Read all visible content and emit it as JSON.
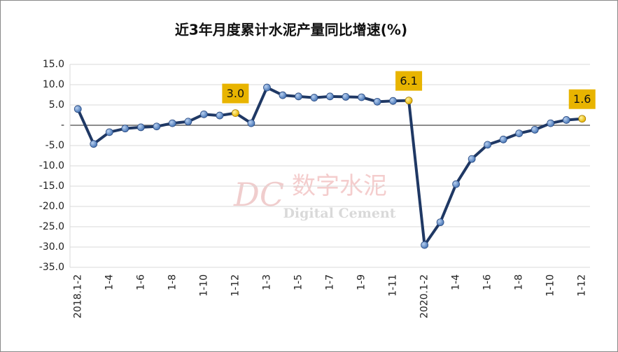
{
  "chart_data": {
    "type": "line",
    "title": "近3年月度累计水泥产量同比增速(%)",
    "watermark": {
      "logo": "DC",
      "name": "数字水泥",
      "english": "Digital Cement"
    },
    "categories": [
      "2018.1-2",
      null,
      "1-4",
      null,
      "1-6",
      null,
      "1-8",
      null,
      "1-10",
      null,
      "1-12",
      null,
      "1-3",
      null,
      "1-5",
      null,
      "1-7",
      null,
      "1-9",
      null,
      "1-11",
      null,
      "2020.1-2",
      null,
      "1-4",
      null,
      "1-6",
      null,
      "1-8",
      null,
      "1-10",
      null,
      "1-12"
    ],
    "series": [
      {
        "color": "#1f3864",
        "marker_color": "#4a78b8",
        "highlight_color": "#e8b400",
        "values": [
          4.0,
          -4.6,
          -1.7,
          -0.8,
          -0.5,
          -0.3,
          0.5,
          0.9,
          2.7,
          2.4,
          3.0,
          0.5,
          9.3,
          7.4,
          7.1,
          6.8,
          7.1,
          7.0,
          6.9,
          5.8,
          6.0,
          6.1,
          -29.5,
          -23.9,
          -14.5,
          -8.3,
          -4.8,
          -3.5,
          -2.0,
          -1.1,
          0.5,
          1.3,
          1.6
        ],
        "value_labels": [
          null,
          null,
          null,
          null,
          null,
          null,
          null,
          null,
          null,
          null,
          "3.0",
          null,
          null,
          null,
          null,
          null,
          null,
          null,
          null,
          null,
          null,
          "6.1",
          null,
          null,
          null,
          null,
          null,
          null,
          null,
          null,
          null,
          null,
          "1.6"
        ]
      }
    ],
    "ylim": [
      -35,
      15
    ],
    "yticks": [
      {
        "value": -35,
        "label": "-35.0"
      },
      {
        "value": -30,
        "label": "-30.0"
      },
      {
        "value": -25,
        "label": "-25.0"
      },
      {
        "value": -20,
        "label": "-20.0"
      },
      {
        "value": -15,
        "label": "-15.0"
      },
      {
        "value": -10,
        "label": "-10.0"
      },
      {
        "value": -5,
        "label": "-5.0"
      },
      {
        "value": 0,
        "label": "-"
      },
      {
        "value": 5,
        "label": "5.0"
      },
      {
        "value": 10,
        "label": "10.0"
      },
      {
        "value": 15,
        "label": "15.0"
      }
    ],
    "grid": true
  }
}
